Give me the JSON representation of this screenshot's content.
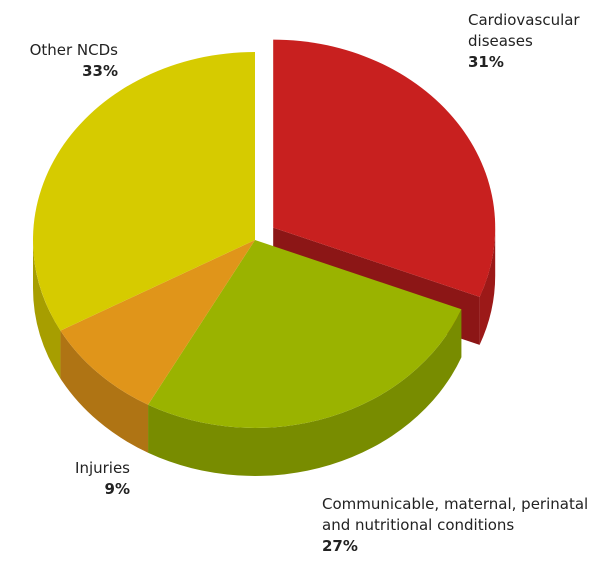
{
  "chart_data": {
    "type": "pie",
    "categories": [
      "Cardiovascular diseases",
      "Communicable, maternal, perinatal and nutritional conditions",
      "Injuries",
      "Other NCDs"
    ],
    "values": [
      31,
      27,
      9,
      33
    ],
    "value_labels": [
      "31%",
      "27%",
      "9%",
      "33%"
    ],
    "colors": [
      "#c8201f",
      "#9ab300",
      "#e0951a",
      "#d6cb00"
    ]
  }
}
